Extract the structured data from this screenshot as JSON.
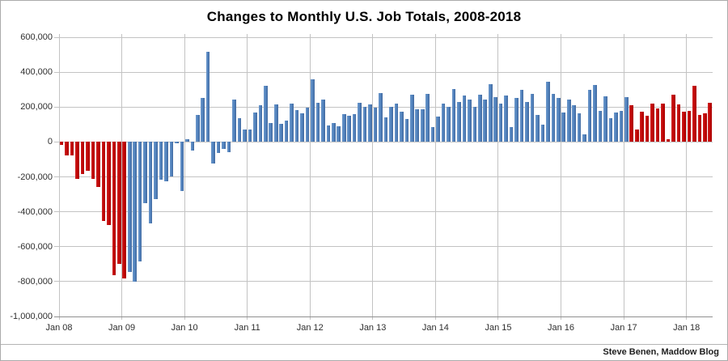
{
  "page": {
    "title": "Changes to Monthly U.S. Job Totals, 2008-2018",
    "attribution": "Steve Benen, Maddow Blog"
  },
  "chart_data": {
    "type": "bar",
    "title": "Changes to Monthly U.S. Job Totals, 2008-2018",
    "xlabel": "",
    "ylabel": "",
    "x_start": "Jan 2008",
    "x_end": "May 2018",
    "ylim": [
      -1000000,
      600000
    ],
    "y_tick_interval": 200000,
    "grid": true,
    "legend": "none",
    "values_unit": "thousands_of_jobs_net_monthly_change",
    "y_ticks": [
      600000,
      400000,
      200000,
      0,
      -200000,
      -400000,
      -600000,
      -800000,
      -1000000
    ],
    "y_tick_labels": [
      "600,000",
      "400,000",
      "200,000",
      "0",
      "-200,000",
      "-400,000",
      "-600,000",
      "-800,000",
      "-1,000,000"
    ],
    "x_tick_labels": [
      "Jan 08",
      "Jan 09",
      "Jan 10",
      "Jan 11",
      "Jan 12",
      "Jan 13",
      "Jan 14",
      "Jan 15",
      "Jan 16",
      "Jan 17",
      "Jan 18"
    ],
    "x_tick_month_indexes": [
      0,
      12,
      24,
      36,
      48,
      60,
      72,
      84,
      96,
      108,
      120
    ],
    "bar_colors": {
      "red": "#c00000",
      "blue": "#4f81bd"
    },
    "color_segments": [
      {
        "color_name": "red",
        "start_index": 0,
        "end_index": 12
      },
      {
        "color_name": "blue",
        "start_index": 13,
        "end_index": 108
      },
      {
        "color_name": "red",
        "start_index": 109,
        "end_index": 124
      }
    ],
    "values": [
      -17,
      -79,
      -78,
      -210,
      -185,
      -165,
      -210,
      -259,
      -452,
      -474,
      -765,
      -697,
      -783,
      -743,
      -800,
      -686,
      -351,
      -467,
      -327,
      -216,
      -227,
      -198,
      -6,
      -283,
      14,
      -50,
      156,
      251,
      516,
      -122,
      -61,
      -42,
      -57,
      241,
      137,
      71,
      70,
      168,
      212,
      322,
      108,
      217,
      106,
      122,
      221,
      183,
      164,
      196,
      360,
      226,
      243,
      96,
      110,
      88,
      160,
      150,
      161,
      225,
      203,
      214,
      197,
      280,
      141,
      199,
      219,
      172,
      130,
      269,
      185,
      189,
      274,
      84,
      144,
      222,
      203,
      304,
      229,
      267,
      243,
      203,
      271,
      243,
      331,
      256,
      221,
      265,
      84,
      251,
      300,
      228,
      277,
      155,
      100,
      345,
      275,
      250,
      170,
      245,
      210,
      165,
      43,
      297,
      325,
      180,
      260,
      135,
      170,
      180,
      259,
      210,
      73,
      175,
      152,
      222,
      190,
      221,
      14,
      271,
      216,
      175,
      176,
      324,
      155,
      164,
      223
    ]
  }
}
